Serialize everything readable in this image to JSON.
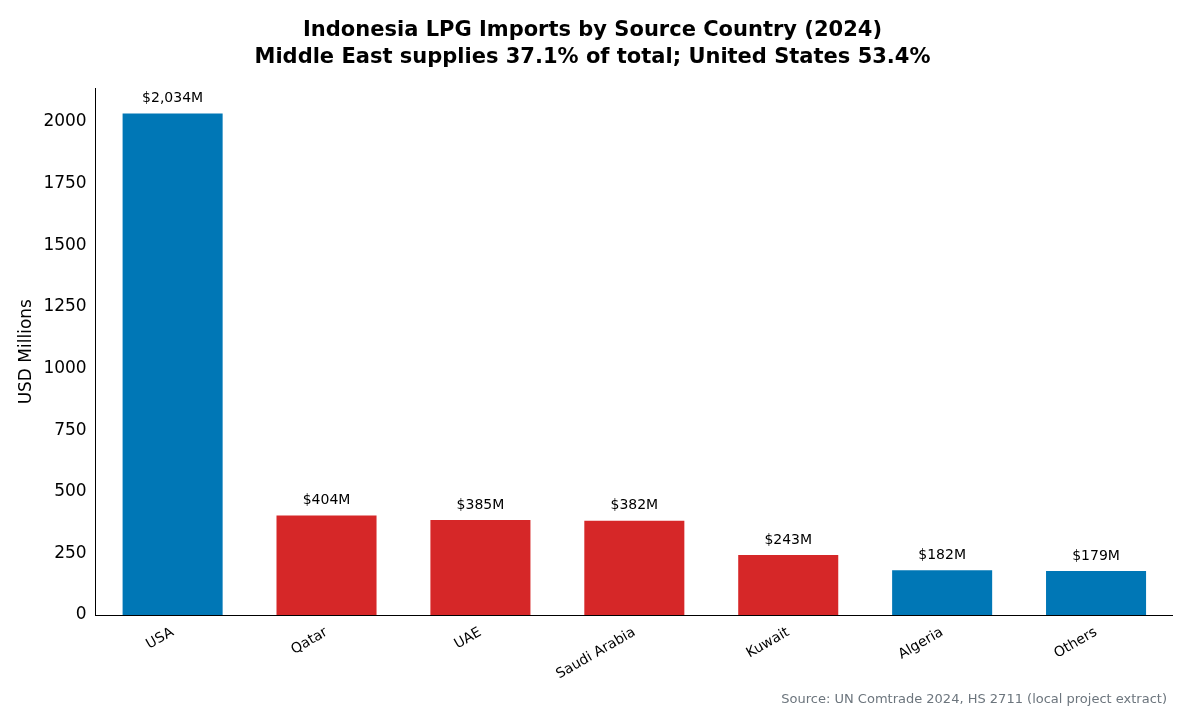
{
  "chart_data": {
    "type": "bar",
    "title": "Indonesia LPG Imports by Source Country (2024)",
    "subtitle": "Middle East supplies 37.1% of total; United States 53.4%",
    "ylabel": "USD Millions",
    "categories": [
      "USA",
      "Qatar",
      "UAE",
      "Saudi Arabia",
      "Kuwait",
      "Algeria",
      "Others"
    ],
    "values": [
      2034,
      404,
      385,
      382,
      243,
      182,
      179
    ],
    "colors": [
      "#0077b6",
      "#d62728",
      "#d62728",
      "#d62728",
      "#d62728",
      "#0077b6",
      "#0077b6"
    ],
    "value_labels": [
      "$2,034M",
      "$404M",
      "$385M",
      "$382M",
      "$243M",
      "$182M",
      "$179M"
    ],
    "ylim": [
      0,
      2136
    ],
    "yticks": [
      0,
      250,
      500,
      750,
      1000,
      1250,
      1500,
      1750,
      2000
    ],
    "grid": false,
    "legend": false,
    "annotations": [
      "Source: UN Comtrade 2024, HS 2711 (local project extract)"
    ]
  }
}
